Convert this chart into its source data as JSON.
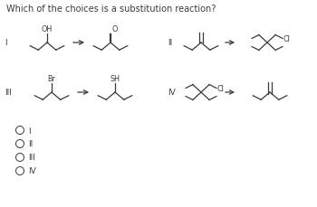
{
  "title": "Which of the choices is a substitution reaction?",
  "bg_color": "#ffffff",
  "text_color": "#3a3a3a",
  "arrow_color": "#3a3a3a",
  "choices": [
    "I",
    "II",
    "III",
    "IV"
  ],
  "title_fontsize": 7.0,
  "label_fontsize": 6.5,
  "annotation_fontsize": 5.8
}
